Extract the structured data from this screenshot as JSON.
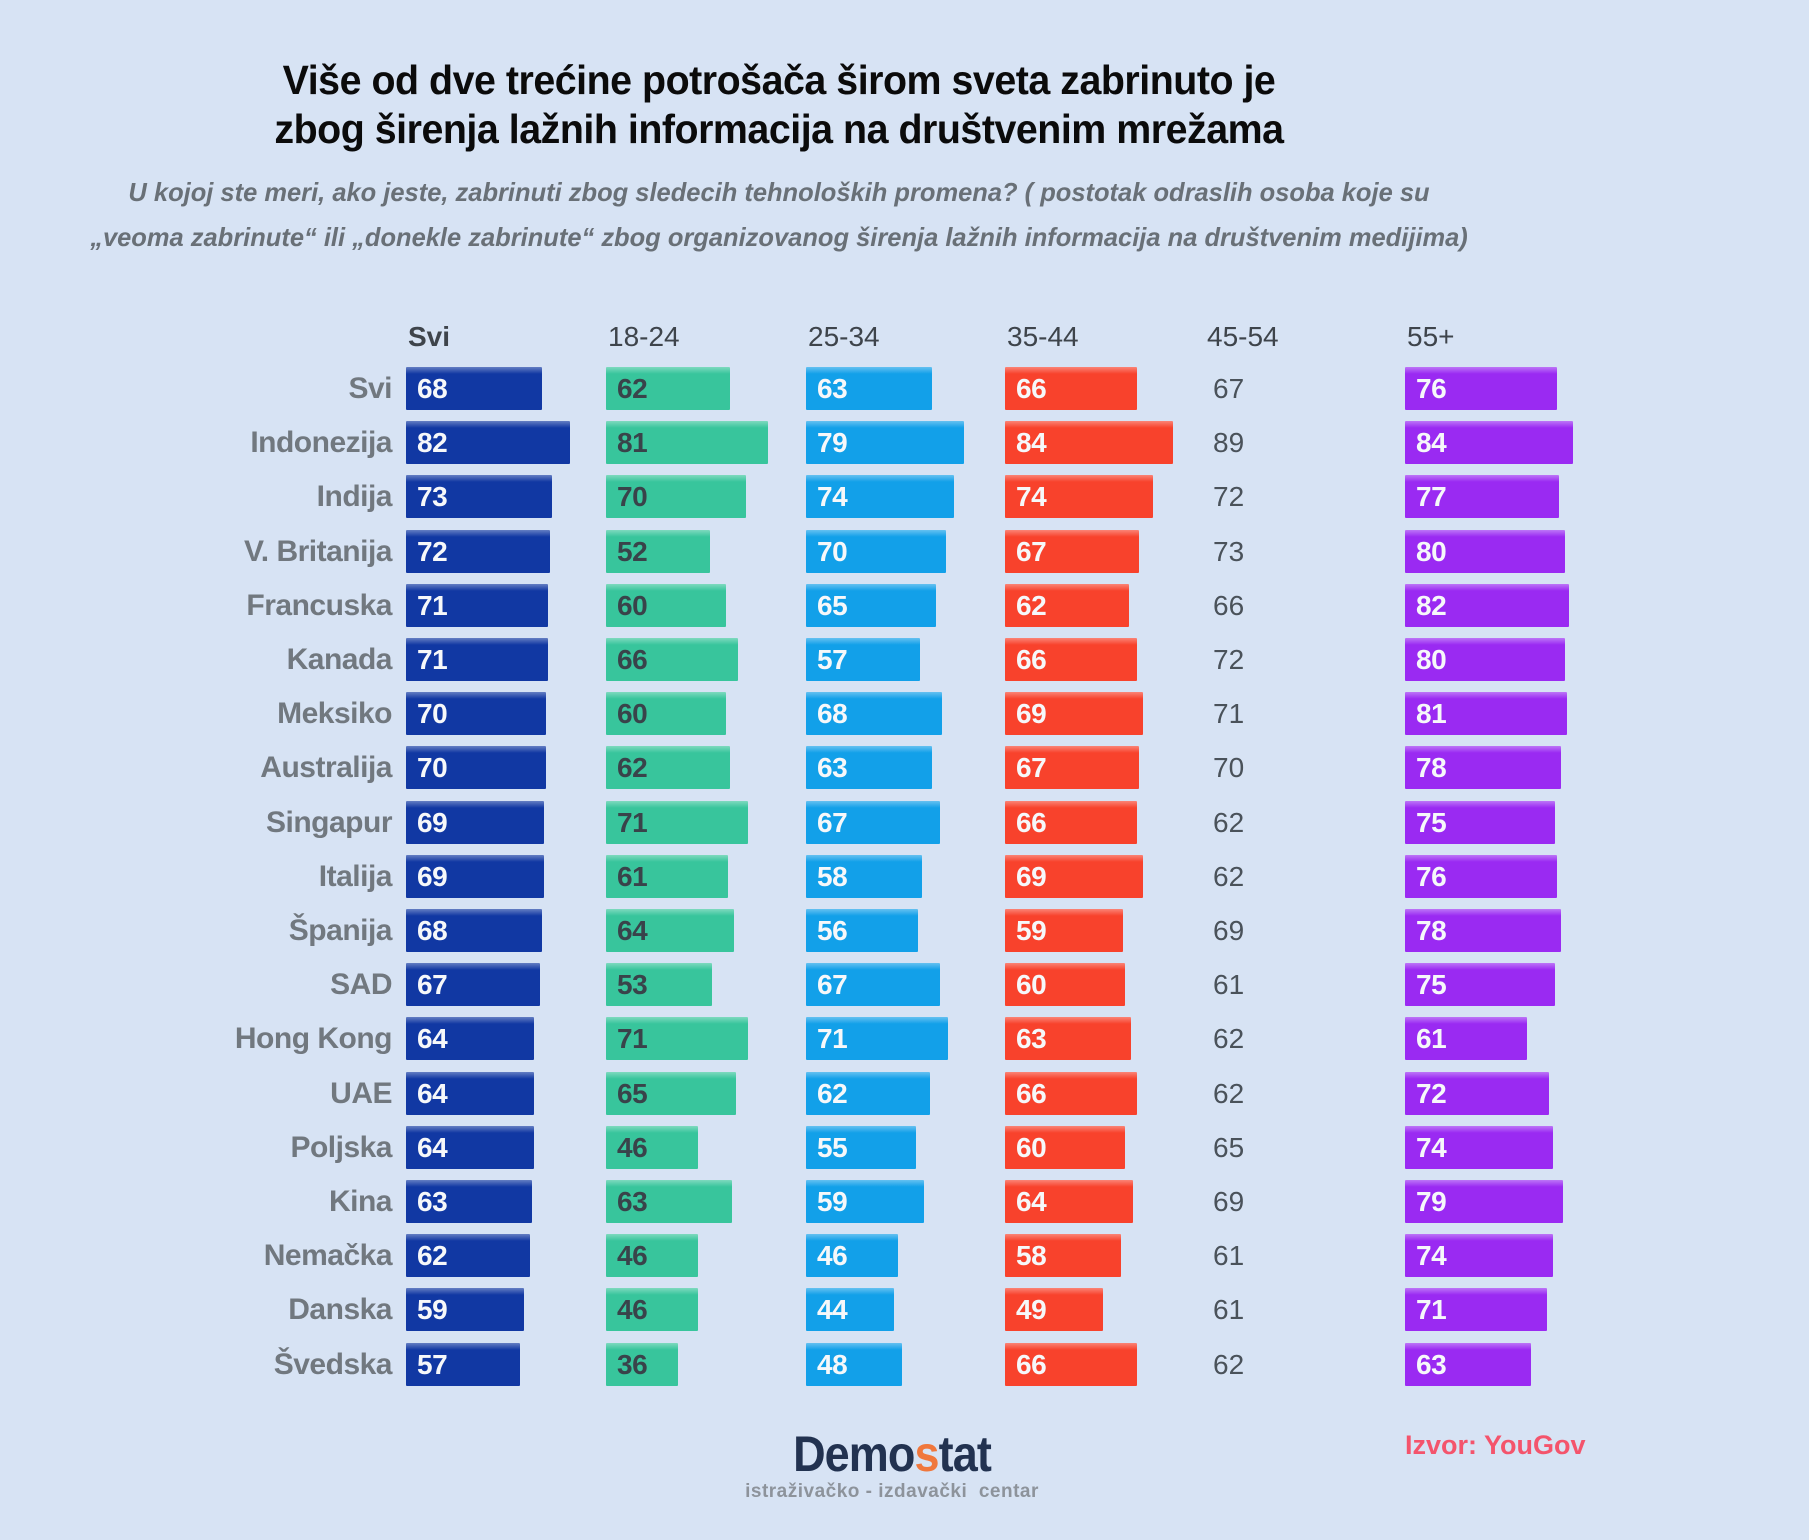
{
  "title": {
    "line1": "Više od dve trećine potrošača širom sveta zabrinuto je",
    "line2": "zbog širenja lažnih informacija na društvenim mrežama"
  },
  "subtitle": {
    "line1": "U kojoj ste meri, ako jeste, zabrinuti zbog sledecih tehnoloških promena? ( postotak odraslih osoba koje su",
    "line2": "„veoma zabrinute“ ili „donekle zabrinute“ zbog organizovanog širenja lažnih informacija na društvenim medijima)"
  },
  "chart_data": {
    "type": "bar",
    "orientation": "horizontal",
    "unit": "percent of adults",
    "value_range": [
      0,
      100
    ],
    "grid": false,
    "legend": "column headers above each bar group",
    "columns": [
      {
        "label": "Svi",
        "color": "#1138a3",
        "value_text_color": "#f6f8fa",
        "has_bar": true,
        "header_bold": true
      },
      {
        "label": "18-24",
        "color": "#38c59c",
        "value_text_color": "#39434a",
        "has_bar": true,
        "header_bold": false
      },
      {
        "label": "25-34",
        "color": "#12a0e9",
        "value_text_color": "#f6f8fa",
        "has_bar": true,
        "header_bold": false
      },
      {
        "label": "35-44",
        "color": "#f8422c",
        "value_text_color": "#f6f8fa",
        "has_bar": true,
        "header_bold": false
      },
      {
        "label": "45-54",
        "color": null,
        "value_text_color": "#4a525a",
        "has_bar": false,
        "header_bold": false
      },
      {
        "label": "55+",
        "color": "#9a2af2",
        "value_text_color": "#f6f8fa",
        "has_bar": true,
        "header_bold": false
      }
    ],
    "rows": [
      {
        "label": "Svi",
        "values": [
          68,
          62,
          63,
          66,
          67,
          76
        ]
      },
      {
        "label": "Indonezija",
        "values": [
          82,
          81,
          79,
          84,
          89,
          84
        ]
      },
      {
        "label": "Indija",
        "values": [
          73,
          70,
          74,
          74,
          72,
          77
        ]
      },
      {
        "label": "V. Britanija",
        "values": [
          72,
          52,
          70,
          67,
          73,
          80
        ]
      },
      {
        "label": "Francuska",
        "values": [
          71,
          60,
          65,
          62,
          66,
          82
        ]
      },
      {
        "label": "Kanada",
        "values": [
          71,
          66,
          57,
          66,
          72,
          80
        ]
      },
      {
        "label": "Meksiko",
        "values": [
          70,
          60,
          68,
          69,
          71,
          81
        ]
      },
      {
        "label": "Australija",
        "values": [
          70,
          62,
          63,
          67,
          70,
          78
        ]
      },
      {
        "label": "Singapur",
        "values": [
          69,
          71,
          67,
          66,
          62,
          75
        ]
      },
      {
        "label": "Italija",
        "values": [
          69,
          61,
          58,
          69,
          62,
          76
        ]
      },
      {
        "label": "Španija",
        "values": [
          68,
          64,
          56,
          59,
          69,
          78
        ]
      },
      {
        "label": "SAD",
        "values": [
          67,
          53,
          67,
          60,
          61,
          75
        ]
      },
      {
        "label": "Hong Kong",
        "values": [
          64,
          71,
          71,
          63,
          62,
          61
        ]
      },
      {
        "label": "UAE",
        "values": [
          64,
          65,
          62,
          66,
          62,
          72
        ]
      },
      {
        "label": "Poljska",
        "values": [
          64,
          46,
          55,
          60,
          65,
          74
        ]
      },
      {
        "label": "Kina",
        "values": [
          63,
          63,
          59,
          64,
          69,
          79
        ]
      },
      {
        "label": "Nemačka",
        "values": [
          62,
          46,
          46,
          58,
          61,
          74
        ]
      },
      {
        "label": "Danska",
        "values": [
          59,
          46,
          44,
          49,
          61,
          71
        ]
      },
      {
        "label": "Švedska",
        "values": [
          57,
          36,
          48,
          66,
          62,
          63
        ]
      }
    ]
  },
  "footer": {
    "logo_text_pre": "Demo",
    "logo_text_accent": "s",
    "logo_text_post": "tat",
    "logo_subtitle": "istraživačko - izdavački  centar",
    "source_label": "Izvor: YouGov"
  },
  "colors": {
    "background": "#d7e3f4",
    "title": "#0b0b0b",
    "subtitle": "#697077",
    "row_label": "#71787f",
    "column_header": "#3e444b",
    "cell_value": "#4a525a",
    "logo_navy": "#223250",
    "logo_accent": "#f0773c",
    "logo_sub": "#8d939b",
    "source": "#f4546c"
  }
}
